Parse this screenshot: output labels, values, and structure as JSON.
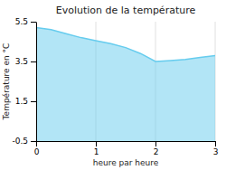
{
  "chart_data": {
    "type": "area",
    "title": "Evolution de la température",
    "xlabel": "heure par heure",
    "ylabel": "Température en °C",
    "x": [
      0,
      0.25,
      0.5,
      0.75,
      1.0,
      1.25,
      1.5,
      1.75,
      2.0,
      2.25,
      2.5,
      2.75,
      3.0
    ],
    "values": [
      5.2,
      5.1,
      4.9,
      4.7,
      4.55,
      4.4,
      4.2,
      3.9,
      3.5,
      3.55,
      3.6,
      3.7,
      3.8
    ],
    "color": "#66ccee",
    "xlim": [
      0,
      3
    ],
    "ylim": [
      -0.5,
      5.5
    ],
    "xticks": [
      0,
      1,
      2,
      3
    ],
    "yticks": [
      -0.5,
      1.5,
      3.5,
      5.5
    ],
    "grid": true
  }
}
